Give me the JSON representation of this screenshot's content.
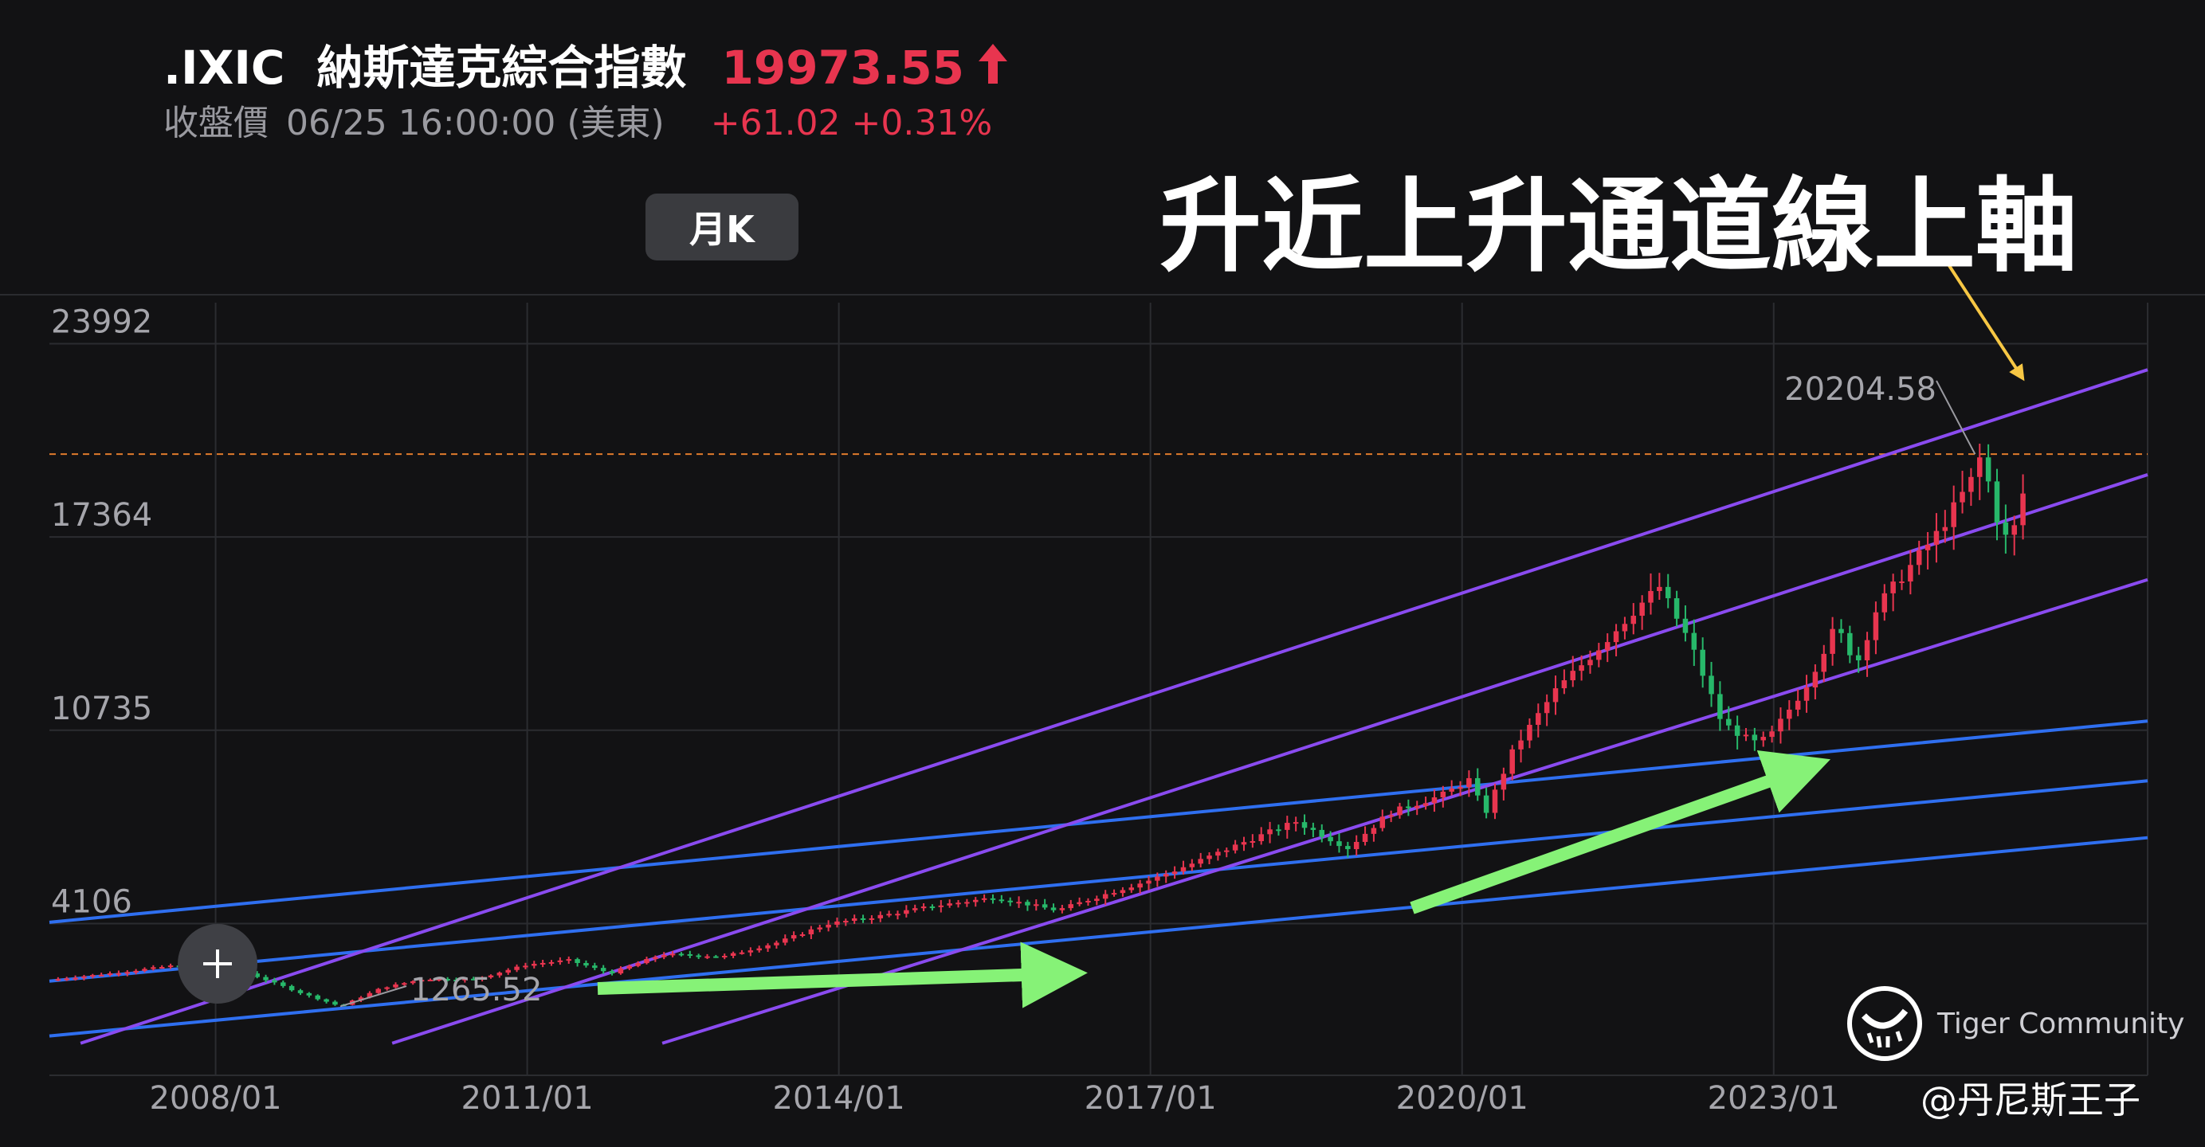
{
  "header": {
    "symbol": ".IXIC",
    "name": "納斯達克綜合指數",
    "price": "19973.55",
    "close_label": "收盤價",
    "close_time": "06/25 16:00:00 (美東)",
    "change": "+61.02 +0.31%",
    "period": "月K"
  },
  "headline": "升近上升通道線上軸",
  "watermark": "Tiger Community",
  "author": "@丹尼斯王子",
  "colors": {
    "background": "#121214",
    "up": "#e8354f",
    "down": "#27b86a",
    "purple_channel": "#8a4bf0",
    "blue_channel": "#2f6ff0",
    "green_arrow": "#86f277",
    "yellow_arrow": "#f7c744",
    "dashed_high": "#e07b2c"
  },
  "chart_data": {
    "type": "candlestick",
    "title": "",
    "y_ticks": [
      23992,
      17364,
      10735,
      4106
    ],
    "ylim": [
      -1100,
      25400
    ],
    "x_ticks": [
      "2008/01",
      "2011/01",
      "2014/01",
      "2017/01",
      "2020/01",
      "2023/01"
    ],
    "xlim": [
      2006.4,
      2026.6
    ],
    "annotations": {
      "high_value": "20204.58",
      "low_value": "1265.52"
    },
    "reference_line": {
      "value": 20204.58,
      "style": "dashed"
    },
    "purple_channel": [
      {
        "x1": 2006.7,
        "y1": 0,
        "x2": 2026.6,
        "y2": 23100
      },
      {
        "x1": 2009.7,
        "y1": 0,
        "x2": 2026.6,
        "y2": 19500
      },
      {
        "x1": 2012.3,
        "y1": 0,
        "x2": 2026.6,
        "y2": 15900
      }
    ],
    "blue_channel": [
      {
        "x1": 2006.4,
        "y1": 4150,
        "x2": 2026.6,
        "y2": 11050
      },
      {
        "x1": 2006.4,
        "y1": 2130,
        "x2": 2026.6,
        "y2": 9000
      },
      {
        "x1": 2006.4,
        "y1": 250,
        "x2": 2026.6,
        "y2": 7050
      }
    ],
    "series_close": [
      [
        2006.4,
        2170
      ],
      [
        2007.0,
        2400
      ],
      [
        2007.8,
        2750
      ],
      [
        2008.3,
        2420
      ],
      [
        2008.8,
        1750
      ],
      [
        2009.2,
        1265.52
      ],
      [
        2009.6,
        1900
      ],
      [
        2010.0,
        2200
      ],
      [
        2010.5,
        2200
      ],
      [
        2011.0,
        2700
      ],
      [
        2011.4,
        2850
      ],
      [
        2011.8,
        2400
      ],
      [
        2012.3,
        3050
      ],
      [
        2012.9,
        2980
      ],
      [
        2013.4,
        3450
      ],
      [
        2013.9,
        4100
      ],
      [
        2014.4,
        4370
      ],
      [
        2014.9,
        4700
      ],
      [
        2015.5,
        5000
      ],
      [
        2016.1,
        4560
      ],
      [
        2016.6,
        5150
      ],
      [
        2017.0,
        5600
      ],
      [
        2017.5,
        6300
      ],
      [
        2017.9,
        6900
      ],
      [
        2018.4,
        7600
      ],
      [
        2018.9,
        6700
      ],
      [
        2019.3,
        7900
      ],
      [
        2019.8,
        8500
      ],
      [
        2020.1,
        9100
      ],
      [
        2020.2,
        7700
      ],
      [
        2020.5,
        10100
      ],
      [
        2020.9,
        12100
      ],
      [
        2021.3,
        13500
      ],
      [
        2021.7,
        15000
      ],
      [
        2021.9,
        15650
      ],
      [
        2022.2,
        13700
      ],
      [
        2022.5,
        11000
      ],
      [
        2022.8,
        10300
      ],
      [
        2022.95,
        10450
      ],
      [
        2023.3,
        12200
      ],
      [
        2023.6,
        14300
      ],
      [
        2023.8,
        13000
      ],
      [
        2024.0,
        15000
      ],
      [
        2024.3,
        16300
      ],
      [
        2024.6,
        17600
      ],
      [
        2024.9,
        19300
      ],
      [
        2025.0,
        20204.58
      ],
      [
        2025.2,
        17300
      ],
      [
        2025.3,
        17450
      ],
      [
        2025.48,
        19973.55
      ]
    ]
  }
}
